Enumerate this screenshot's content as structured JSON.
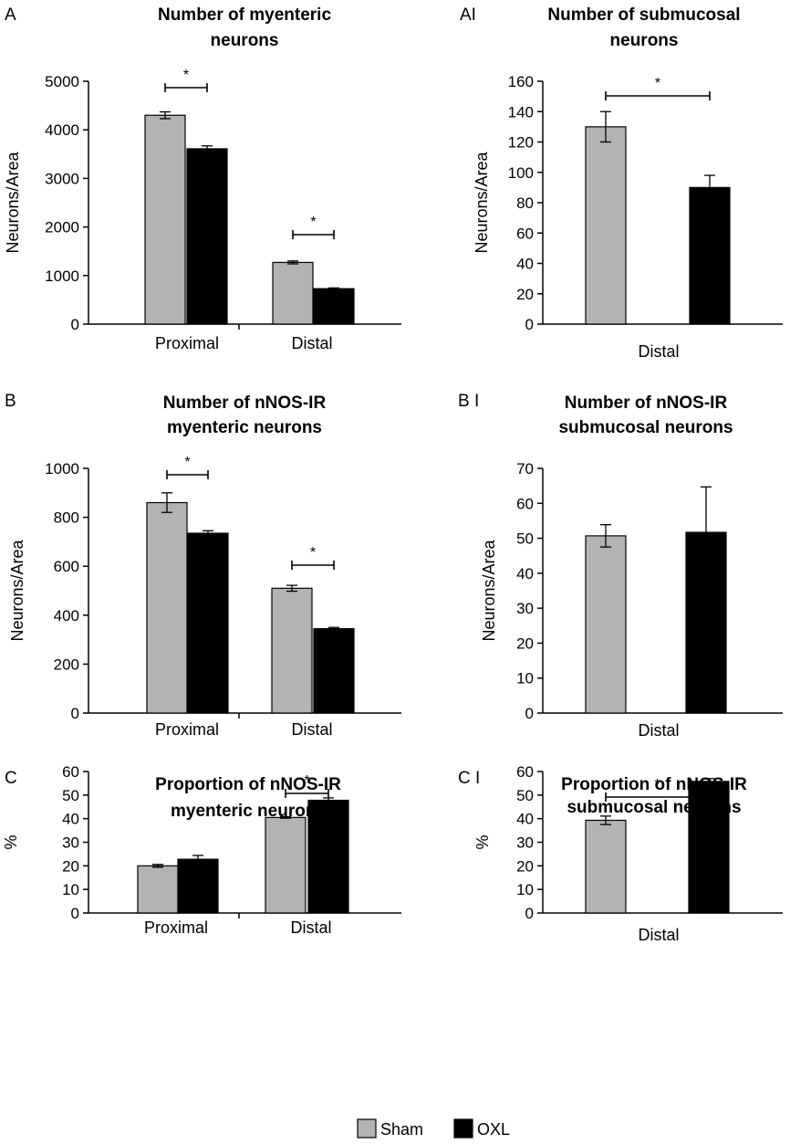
{
  "chart_data": [
    {
      "id": "A",
      "type": "bar",
      "panel_label": "A",
      "title": [
        "Number of myenteric",
        "neurons"
      ],
      "ylabel": "Neurons/Area",
      "xlabel": "",
      "ylim": [
        0,
        5000
      ],
      "yticks": [
        0,
        1000,
        2000,
        3000,
        4000,
        5000
      ],
      "categories": [
        "Proximal",
        "Distal"
      ],
      "series": [
        {
          "name": "Sham",
          "values": [
            4300,
            1270
          ],
          "errors": [
            70,
            30
          ]
        },
        {
          "name": "OXL",
          "values": [
            3610,
            730
          ],
          "errors": [
            60,
            15
          ]
        }
      ],
      "significance": [
        {
          "category": "Proximal",
          "label": "*"
        },
        {
          "category": "Distal",
          "label": "*"
        }
      ]
    },
    {
      "id": "A1",
      "type": "bar",
      "panel_label": "AI",
      "title": [
        "Number of submucosal",
        "neurons"
      ],
      "ylabel": "Neurons/Area",
      "xlabel": "",
      "ylim": [
        0,
        160
      ],
      "yticks": [
        0,
        20,
        40,
        60,
        80,
        100,
        120,
        140,
        160
      ],
      "categories": [
        "Distal"
      ],
      "series": [
        {
          "name": "Sham",
          "values": [
            130
          ],
          "errors": [
            10
          ]
        },
        {
          "name": "OXL",
          "values": [
            90
          ],
          "errors": [
            8
          ]
        }
      ],
      "significance": [
        {
          "category": "Distal",
          "label": "*"
        }
      ]
    },
    {
      "id": "B",
      "type": "bar",
      "panel_label": "B",
      "title": [
        "Number of nNOS-IR",
        "myenteric neurons"
      ],
      "ylabel": "Neurons/Area",
      "xlabel": "",
      "ylim": [
        0,
        1000
      ],
      "yticks": [
        0,
        200,
        400,
        600,
        800,
        1000
      ],
      "categories": [
        "Proximal",
        "Distal"
      ],
      "series": [
        {
          "name": "Sham",
          "values": [
            860,
            510
          ],
          "errors": [
            40,
            12
          ]
        },
        {
          "name": "OXL",
          "values": [
            735,
            345
          ],
          "errors": [
            10,
            5
          ]
        }
      ],
      "significance": [
        {
          "category": "Proximal",
          "label": "*"
        },
        {
          "category": "Distal",
          "label": "*"
        }
      ]
    },
    {
      "id": "B1",
      "type": "bar",
      "panel_label": "B I",
      "title": [
        "Number of nNOS-IR",
        "submucosal  neurons"
      ],
      "ylabel": "Neurons/Area",
      "xlabel": "",
      "ylim": [
        0,
        70
      ],
      "yticks": [
        0,
        10,
        20,
        30,
        40,
        50,
        60,
        70
      ],
      "categories": [
        "Distal"
      ],
      "series": [
        {
          "name": "Sham",
          "values": [
            50.7
          ],
          "errors": [
            3.2
          ]
        },
        {
          "name": "OXL",
          "values": [
            51.7
          ],
          "errors": [
            13
          ]
        }
      ],
      "significance": []
    },
    {
      "id": "C",
      "type": "bar",
      "panel_label": "C",
      "title": [
        "Proportion of nNOS-IR",
        "myenteric neurons"
      ],
      "ylabel": "%",
      "xlabel": "",
      "ylim": [
        0,
        60
      ],
      "yticks": [
        0,
        10,
        20,
        30,
        40,
        50,
        60
      ],
      "categories": [
        "Proximal",
        "Distal"
      ],
      "series": [
        {
          "name": "Sham",
          "values": [
            20,
            40.5
          ],
          "errors": [
            0.6,
            0.3
          ]
        },
        {
          "name": "OXL",
          "values": [
            22.8,
            47.8
          ],
          "errors": [
            1.6,
            1
          ]
        }
      ],
      "significance": [
        {
          "category": "Distal",
          "label": "*"
        }
      ]
    },
    {
      "id": "C1",
      "type": "bar",
      "panel_label": "C I",
      "title": [
        "Proportion of nNOS-IR",
        "submucosal  neurons"
      ],
      "ylabel": "%",
      "xlabel": "",
      "ylim": [
        0,
        60
      ],
      "yticks": [
        0,
        10,
        20,
        30,
        40,
        50,
        60
      ],
      "categories": [
        "Distal"
      ],
      "series": [
        {
          "name": "Sham",
          "values": [
            39.3
          ],
          "errors": [
            1.8
          ]
        },
        {
          "name": "OXL",
          "values": [
            55.8
          ],
          "errors": [
            1.2
          ]
        }
      ],
      "significance": [
        {
          "category": "Distal",
          "label": "*"
        }
      ]
    }
  ],
  "legend": {
    "position": "bottom-right",
    "items": [
      {
        "label": "Sham",
        "color": "#b3b3b3"
      },
      {
        "label": "OXL",
        "color": "#000000"
      }
    ]
  },
  "colors": {
    "sham": "#b3b3b3",
    "oxl": "#000000",
    "axis": "#000000"
  }
}
